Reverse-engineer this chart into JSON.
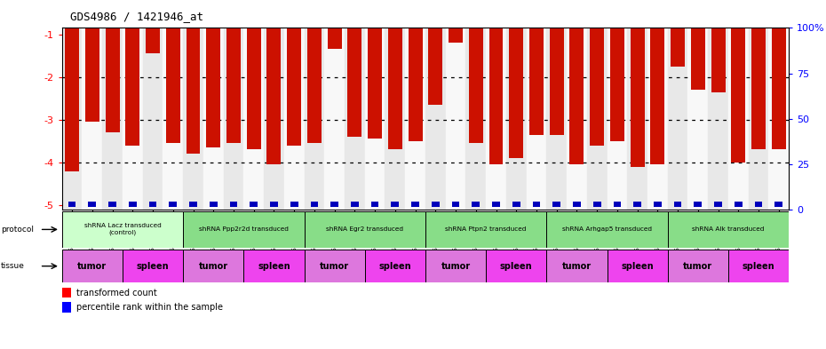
{
  "title": "GDS4986 / 1421946_at",
  "samples": [
    "GSM1290692",
    "GSM1290693",
    "GSM1290694",
    "GSM1290674",
    "GSM1290675",
    "GSM1290676",
    "GSM1290695",
    "GSM1290696",
    "GSM1290697",
    "GSM1290677",
    "GSM1290678",
    "GSM1290679",
    "GSM1290698",
    "GSM1290699",
    "GSM1290700",
    "GSM1290680",
    "GSM1290681",
    "GSM1290682",
    "GSM1290701",
    "GSM1290702",
    "GSM1290703",
    "GSM1290683",
    "GSM1290684",
    "GSM1290685",
    "GSM1290704",
    "GSM1290705",
    "GSM1290706",
    "GSM1290686",
    "GSM1290687",
    "GSM1290688",
    "GSM1290707",
    "GSM1290708",
    "GSM1290709",
    "GSM1290689",
    "GSM1290690",
    "GSM1290691"
  ],
  "bar_values": [
    -4.2,
    -3.05,
    -3.3,
    -3.6,
    -1.45,
    -3.55,
    -3.8,
    -3.65,
    -3.55,
    -3.7,
    -4.05,
    -3.6,
    -3.55,
    -1.35,
    -3.4,
    -3.45,
    -3.7,
    -3.5,
    -2.65,
    -1.2,
    -3.55,
    -4.05,
    -3.9,
    -3.35,
    -3.35,
    -4.05,
    -3.6,
    -3.5,
    -4.1,
    -4.05,
    -1.75,
    -2.3,
    -2.35,
    -4.0,
    -3.7,
    -3.7
  ],
  "ylim": [
    -5.1,
    -0.85
  ],
  "yticks": [
    -5,
    -4,
    -3,
    -2,
    -1
  ],
  "ytick_labels": [
    "-5",
    "-4",
    "-3",
    "-2",
    "-1"
  ],
  "right_ytick_percents": [
    0,
    25,
    50,
    75,
    100
  ],
  "right_ytick_labels": [
    "0",
    "25",
    "50",
    "75",
    "100%"
  ],
  "dotted_lines": [
    -2,
    -3,
    -4
  ],
  "bar_color": "#cc1100",
  "percentile_color": "#0000bb",
  "protocols": [
    {
      "label": "shRNA Lacz transduced\n(control)",
      "start": 0,
      "end": 5,
      "color": "#ccffcc"
    },
    {
      "label": "shRNA Ppp2r2d transduced",
      "start": 6,
      "end": 11,
      "color": "#88dd88"
    },
    {
      "label": "shRNA Egr2 transduced",
      "start": 12,
      "end": 17,
      "color": "#88dd88"
    },
    {
      "label": "shRNA Ptpn2 transduced",
      "start": 18,
      "end": 23,
      "color": "#88dd88"
    },
    {
      "label": "shRNA Arhgap5 transduced",
      "start": 24,
      "end": 29,
      "color": "#88dd88"
    },
    {
      "label": "shRNA Alk transduced",
      "start": 30,
      "end": 35,
      "color": "#88dd88"
    }
  ],
  "tissues": [
    {
      "label": "tumor",
      "start": 0,
      "end": 2,
      "color": "#dd77dd"
    },
    {
      "label": "spleen",
      "start": 3,
      "end": 5,
      "color": "#ee44ee"
    },
    {
      "label": "tumor",
      "start": 6,
      "end": 8,
      "color": "#dd77dd"
    },
    {
      "label": "spleen",
      "start": 9,
      "end": 11,
      "color": "#ee44ee"
    },
    {
      "label": "tumor",
      "start": 12,
      "end": 14,
      "color": "#dd77dd"
    },
    {
      "label": "spleen",
      "start": 15,
      "end": 17,
      "color": "#ee44ee"
    },
    {
      "label": "tumor",
      "start": 18,
      "end": 20,
      "color": "#dd77dd"
    },
    {
      "label": "spleen",
      "start": 21,
      "end": 23,
      "color": "#ee44ee"
    },
    {
      "label": "tumor",
      "start": 24,
      "end": 26,
      "color": "#dd77dd"
    },
    {
      "label": "spleen",
      "start": 27,
      "end": 29,
      "color": "#ee44ee"
    },
    {
      "label": "tumor",
      "start": 30,
      "end": 32,
      "color": "#dd77dd"
    },
    {
      "label": "spleen",
      "start": 33,
      "end": 35,
      "color": "#ee44ee"
    }
  ],
  "fig_width": 9.3,
  "fig_height": 3.93,
  "dpi": 100
}
